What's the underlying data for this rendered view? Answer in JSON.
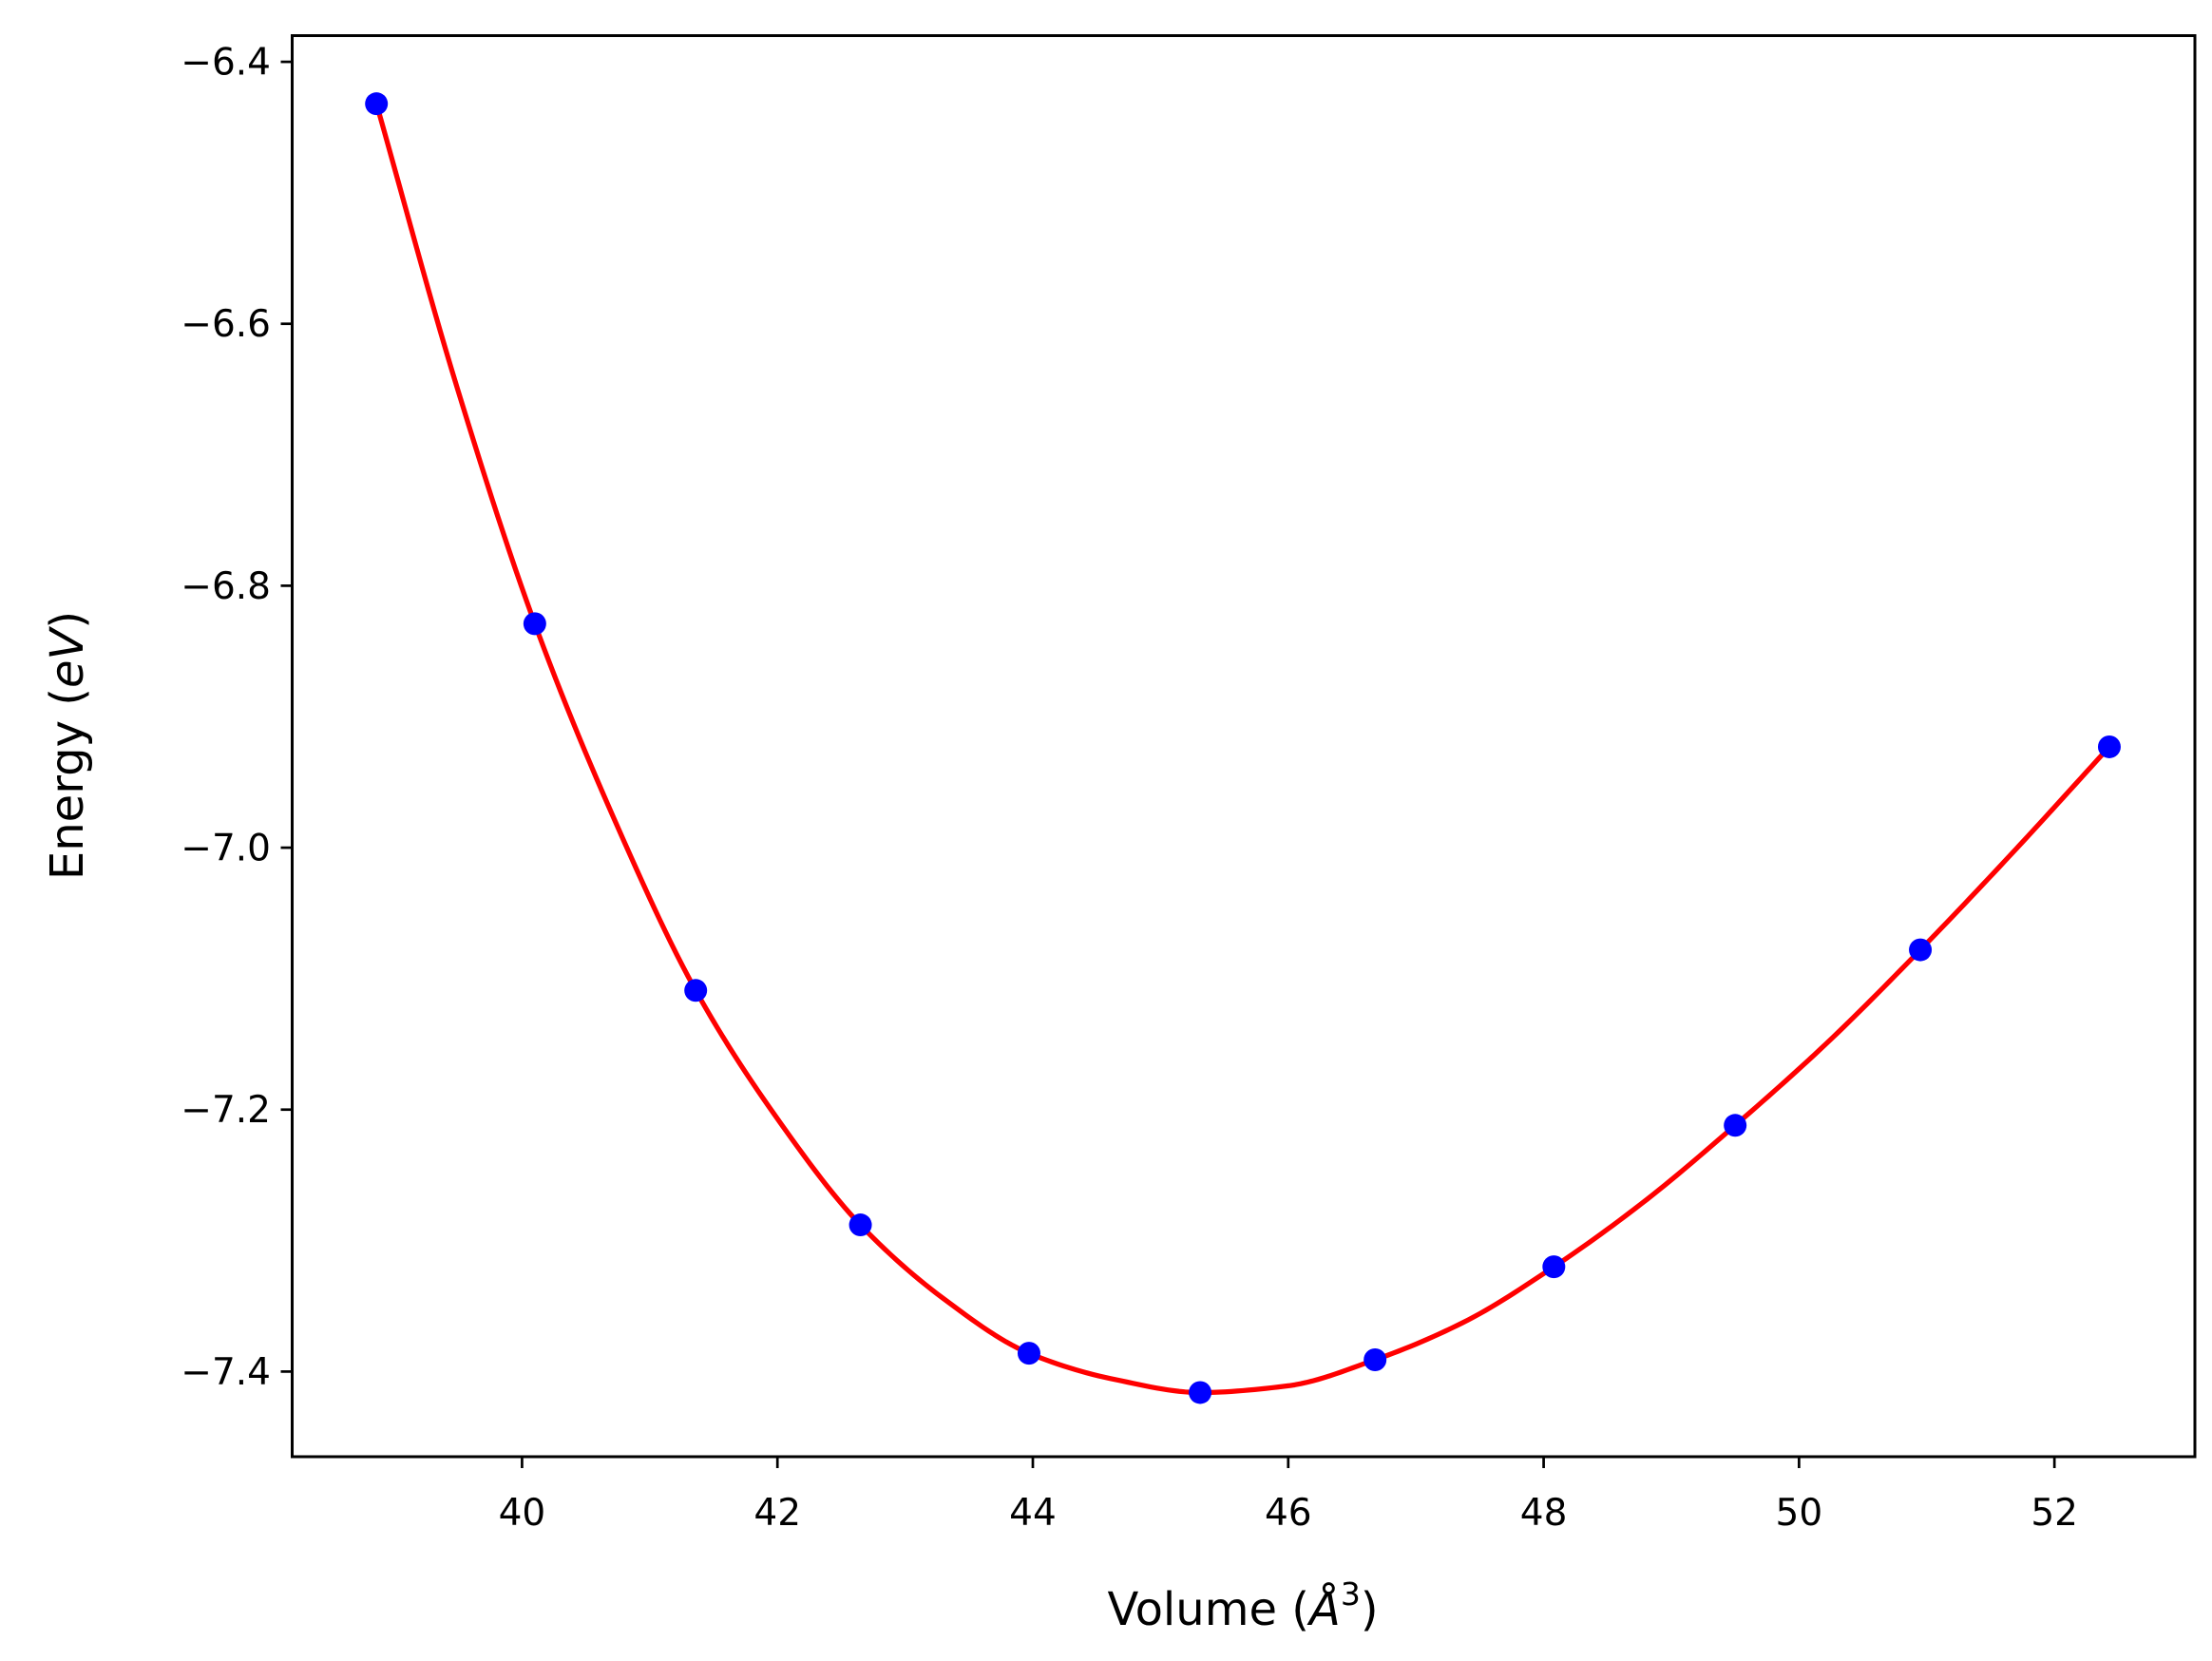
{
  "chart_data": {
    "type": "line",
    "title": "",
    "xlabel": "Volume",
    "xlabel_unit_letter": "Å",
    "xlabel_unit_power": "3",
    "ylabel": "Energy",
    "ylabel_unit": "eV",
    "xlim": [
      38.2,
      53.1
    ],
    "ylim": [
      -7.465,
      -6.38
    ],
    "xticks": [
      40,
      42,
      44,
      46,
      48,
      50,
      52
    ],
    "xtick_labels": [
      "40",
      "42",
      "44",
      "46",
      "48",
      "50",
      "52"
    ],
    "yticks": [
      -6.4,
      -6.6,
      -6.8,
      -7.0,
      -7.2,
      -7.4
    ],
    "ytick_labels": [
      "−6.4",
      "−6.6",
      "−6.8",
      "−7.0",
      "−7.2",
      "−7.4"
    ],
    "grid": false,
    "legend": "none",
    "series": [
      {
        "kind": "markers",
        "color": "#0000ff",
        "x": [
          38.86,
          40.1,
          41.36,
          42.65,
          43.97,
          45.31,
          46.68,
          48.08,
          49.5,
          50.95,
          52.43
        ],
        "y": [
          -6.432,
          -6.829,
          -7.109,
          -7.288,
          -7.386,
          -7.416,
          -7.391,
          -7.32,
          -7.212,
          -7.078,
          -6.923
        ]
      },
      {
        "kind": "fit-curve",
        "color": "#ff0000",
        "x": [
          38.86,
          39.48,
          40.1,
          40.73,
          41.36,
          42.0,
          42.65,
          43.31,
          43.97,
          44.64,
          45.31,
          45.99,
          46.68,
          47.38,
          48.08,
          48.79,
          49.5,
          50.22,
          50.95,
          51.69,
          52.43
        ],
        "y": [
          -6.432,
          -6.645,
          -6.829,
          -6.98,
          -7.109,
          -7.207,
          -7.288,
          -7.345,
          -7.386,
          -7.406,
          -7.416,
          -7.411,
          -7.391,
          -7.362,
          -7.32,
          -7.27,
          -7.212,
          -7.149,
          -7.078,
          -7.002,
          -6.923
        ]
      }
    ]
  }
}
